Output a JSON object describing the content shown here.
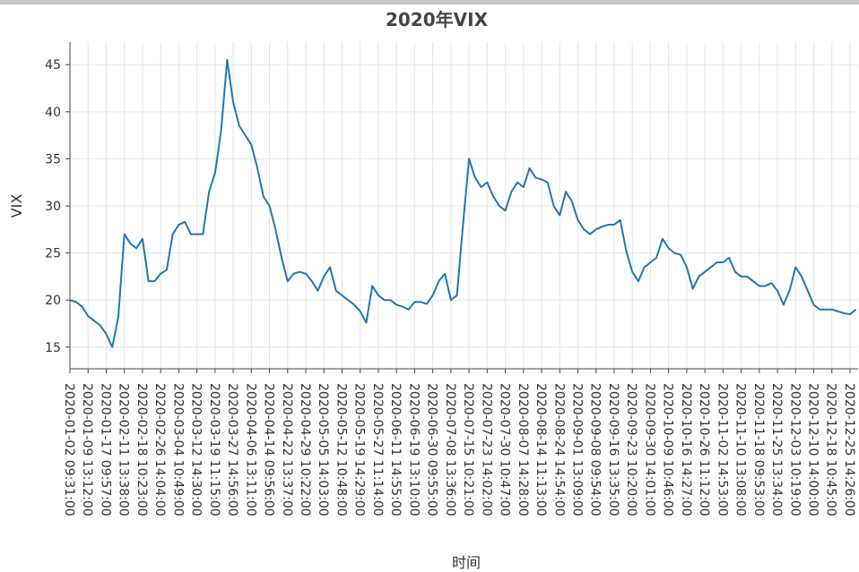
{
  "chart_data": {
    "type": "line",
    "title": "2020年VIX",
    "xlabel": "时间",
    "ylabel": "VIX",
    "categories": [
      "2020-01-02 09:31:00",
      null,
      null,
      "2020-01-09 13:12:00",
      null,
      null,
      "2020-01-17 09:57:00",
      null,
      null,
      "2020-02-11 13:38:00",
      null,
      null,
      "2020-02-18 10:23:00",
      null,
      null,
      "2020-02-26 14:04:00",
      null,
      null,
      "2020-03-04 10:49:00",
      null,
      null,
      "2020-03-12 14:30:00",
      null,
      null,
      "2020-03-19 11:15:00",
      null,
      null,
      "2020-03-27 14:56:00",
      null,
      null,
      "2020-04-06 13:11:00",
      null,
      null,
      "2020-04-14 09:56:00",
      null,
      null,
      "2020-04-22 13:37:00",
      null,
      null,
      "2020-04-29 10:22:00",
      null,
      null,
      "2020-05-05 14:03:00",
      null,
      null,
      "2020-05-12 10:48:00",
      null,
      null,
      "2020-05-19 14:29:00",
      null,
      null,
      "2020-05-27 11:14:00",
      null,
      null,
      "2020-06-11 14:55:00",
      null,
      null,
      "2020-06-19 13:10:00",
      null,
      null,
      "2020-06-30 09:55:00",
      null,
      null,
      "2020-07-08 13:36:00",
      null,
      null,
      "2020-07-15 10:21:00",
      null,
      null,
      "2020-07-23 14:02:00",
      null,
      null,
      "2020-07-30 10:47:00",
      null,
      null,
      "2020-08-07 14:28:00",
      null,
      null,
      "2020-08-14 11:13:00",
      null,
      null,
      "2020-08-24 14:54:00",
      null,
      null,
      "2020-09-01 13:09:00",
      null,
      null,
      "2020-09-08 09:54:00",
      null,
      null,
      "2020-09-16 13:35:00",
      null,
      null,
      "2020-09-23 10:20:00",
      null,
      null,
      "2020-09-30 14:01:00",
      null,
      null,
      "2020-10-09 10:46:00",
      null,
      null,
      "2020-10-16 14:27:00",
      null,
      null,
      "2020-10-26 11:12:00",
      null,
      null,
      "2020-11-02 14:53:00",
      null,
      null,
      "2020-11-10 13:08:00",
      null,
      null,
      "2020-11-18 09:53:00",
      null,
      null,
      "2020-11-25 13:34:00",
      null,
      null,
      "2020-12-03 10:19:00",
      null,
      null,
      "2020-12-10 14:00:00",
      null,
      null,
      "2020-12-18 10:45:00",
      null,
      null,
      "2020-12-25 14:26:00",
      null
    ],
    "values": [
      20,
      19.8,
      19.3,
      18.3,
      17.8,
      17.3,
      16.4,
      15,
      18.2,
      27,
      26,
      25.5,
      26.5,
      22,
      22,
      22.8,
      23.2,
      27,
      28,
      28.3,
      27,
      27,
      27,
      31.5,
      33.5,
      38,
      45.5,
      41,
      38.5,
      37.5,
      36.5,
      34,
      31,
      30,
      27.5,
      24.5,
      22,
      22.8,
      23,
      22.8,
      22,
      21,
      22.5,
      23.5,
      21,
      20.5,
      20,
      19.5,
      18.8,
      17.6,
      21.5,
      20.5,
      20,
      20,
      19.5,
      19.3,
      19,
      19.8,
      19.8,
      19.6,
      20.5,
      22,
      22.8,
      20,
      20.5,
      28,
      35,
      33,
      32,
      32.5,
      31,
      30,
      29.5,
      31.5,
      32.5,
      32,
      34,
      33,
      32.8,
      32.5,
      30,
      29,
      31.5,
      30.5,
      28.5,
      27.5,
      27,
      27.5,
      27.8,
      28,
      28,
      28.5,
      25.2,
      23,
      22,
      23.5,
      24,
      24.5,
      26.5,
      25.5,
      25,
      24.8,
      23.5,
      21.2,
      22.5,
      23,
      23.5,
      24,
      24,
      24.5,
      23,
      22.5,
      22.5,
      22,
      21.5,
      21.5,
      21.8,
      21,
      19.5,
      21,
      23.5,
      22.5,
      21,
      19.5,
      19,
      19,
      19,
      18.8,
      18.6,
      18.5,
      19
    ],
    "color": "#1f77b4",
    "ylim": [
      12.7,
      47.4
    ],
    "yticks": [
      15,
      20,
      25,
      30,
      35,
      40,
      45
    ],
    "grid": true
  }
}
